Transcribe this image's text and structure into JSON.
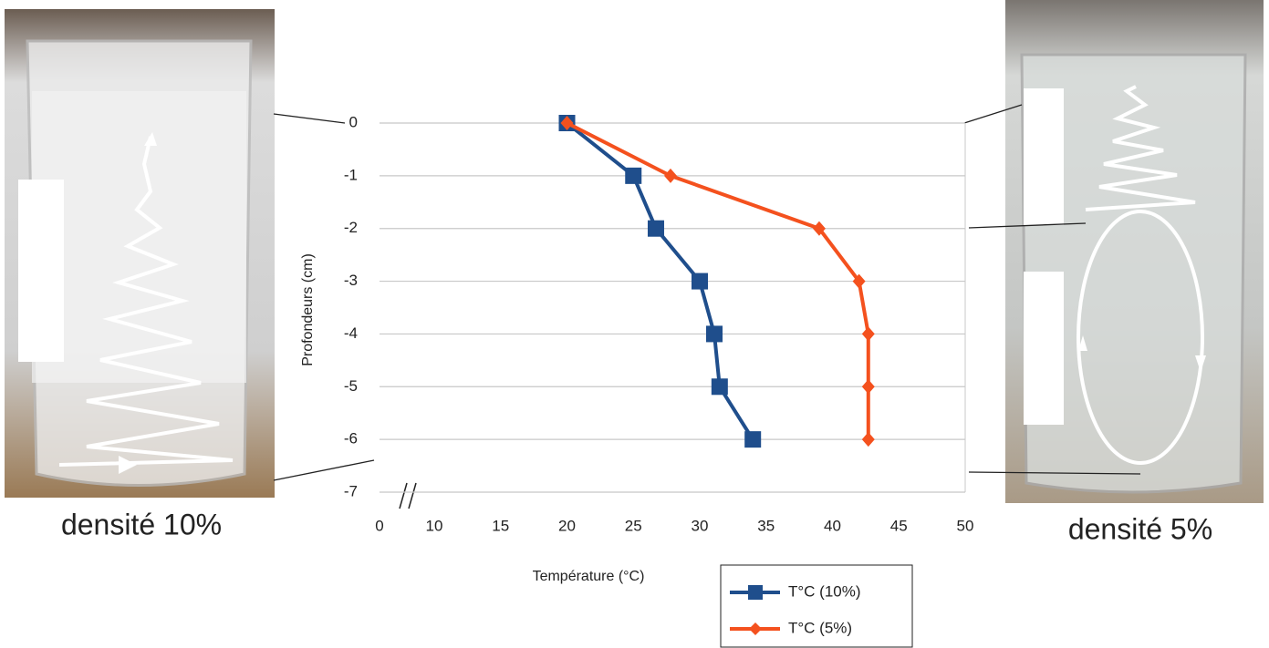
{
  "chart_data": {
    "type": "line",
    "xlabel": "Température (°C)",
    "ylabel": "Profondeurs (cm)",
    "left_caption": "densité 10%",
    "right_caption": "densité 5%",
    "series": [
      {
        "name": "T°C (10%)",
        "color": "#1f4e8c",
        "marker": "square",
        "x": [
          20,
          25,
          26.7,
          30,
          31.1,
          31.5,
          34
        ],
        "values": [
          0,
          -1,
          -2,
          -3,
          -4,
          -5,
          -6
        ]
      },
      {
        "name": "T°C (5%)",
        "color": "#f4511e",
        "marker": "diamond",
        "x": [
          20,
          27.8,
          39,
          42,
          42.7,
          42.7,
          42.7
        ],
        "values": [
          0,
          -1,
          -2,
          -3,
          -4,
          -5,
          -6
        ]
      }
    ],
    "xlim": [
      0,
      50
    ],
    "xticks": [
      0,
      10,
      15,
      20,
      25,
      30,
      35,
      40,
      45,
      50
    ],
    "x_break": [
      0,
      10
    ],
    "ylim": [
      -7,
      0
    ],
    "yticks": [
      0,
      -1,
      -2,
      -3,
      -4,
      -5,
      -6,
      -7
    ],
    "grid": true,
    "legend": "bottom"
  }
}
